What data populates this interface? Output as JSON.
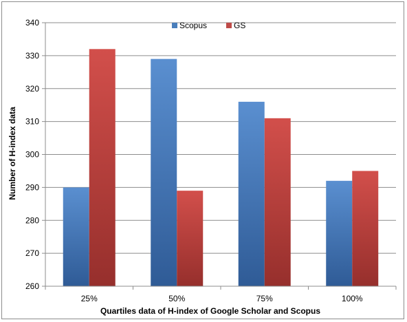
{
  "chart_data": {
    "type": "bar",
    "title": "",
    "xlabel": "Quartiles data of H-index of Google Scholar and Scopus",
    "ylabel": "Number of H-index data",
    "categories": [
      "25%",
      "50%",
      "75%",
      "100%"
    ],
    "series": [
      {
        "name": "Scopus",
        "values": [
          290,
          329,
          316,
          292
        ],
        "color": "#4a7ebb"
      },
      {
        "name": "GS",
        "values": [
          332,
          289,
          311,
          295
        ],
        "color": "#be4b48"
      }
    ],
    "ylim": [
      260,
      340
    ],
    "yticks": [
      260,
      270,
      280,
      290,
      300,
      310,
      320,
      330,
      340
    ],
    "grid": true,
    "legend_position": "top-center"
  }
}
